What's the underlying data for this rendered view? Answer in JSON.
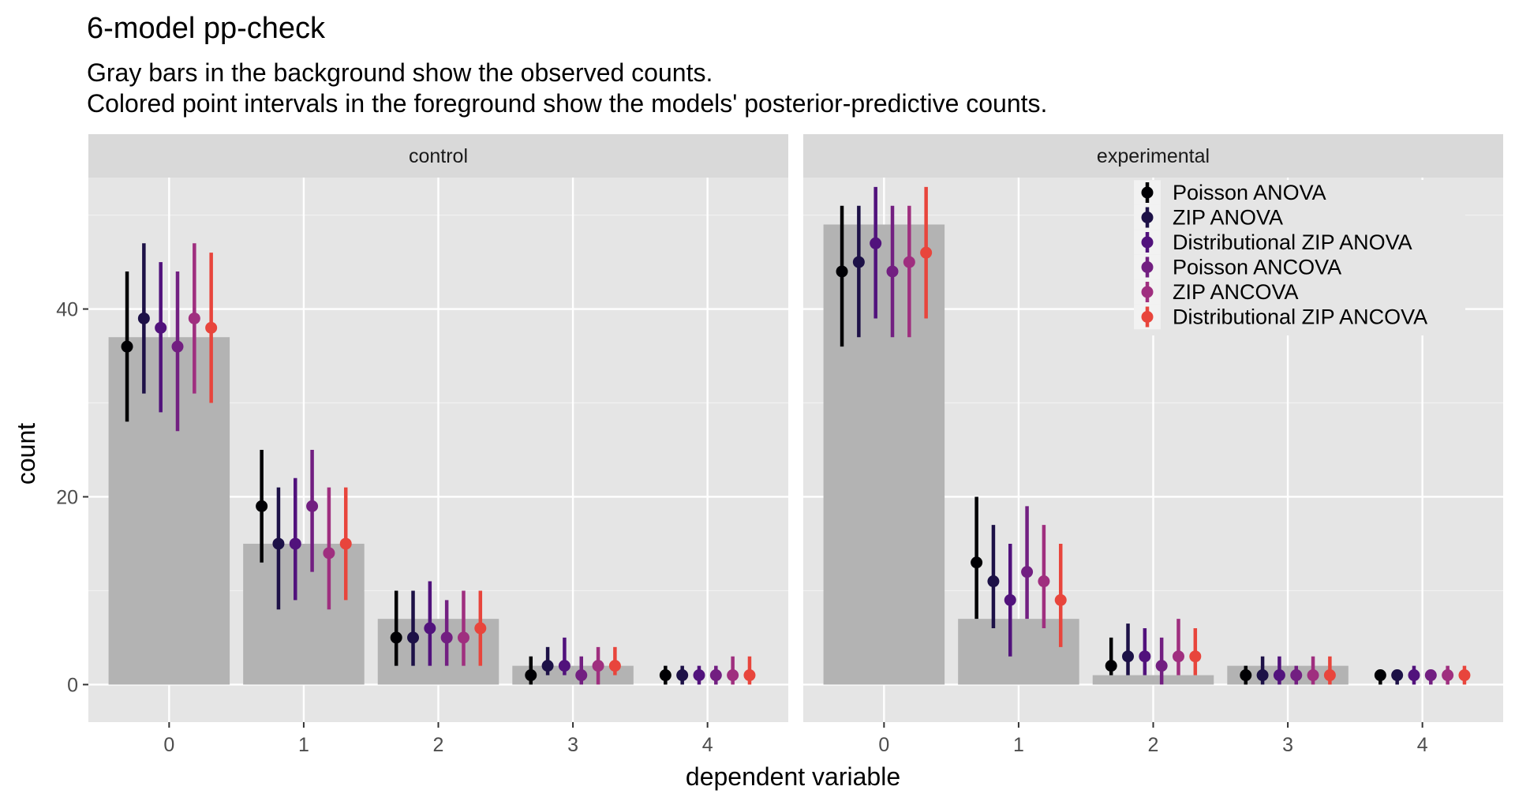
{
  "chart_data": {
    "type": "bar",
    "title": "6-model pp-check",
    "subtitle_lines": [
      "Gray bars in the background show the observed counts.",
      "Colored point intervals in the foreground show the models' posterior-predictive counts."
    ],
    "xlabel": "dependent variable",
    "ylabel": "count",
    "categories": [
      "0",
      "1",
      "2",
      "3",
      "4"
    ],
    "ylim": [
      -4,
      54
    ],
    "yticks": [
      0,
      20,
      40
    ],
    "grid": true,
    "legend_position": "top-right",
    "colors": {
      "panel_background": "#e5e5e5",
      "strip_background": "#d9d9d9",
      "observed_bar": "#b3b3b3"
    },
    "models": [
      {
        "name": "Poisson ANOVA",
        "color": "#000004"
      },
      {
        "name": "ZIP ANOVA",
        "color": "#1d1147"
      },
      {
        "name": "Distributional ZIP ANOVA",
        "color": "#51127c"
      },
      {
        "name": "Poisson ANCOVA",
        "color": "#721f81"
      },
      {
        "name": "ZIP ANCOVA",
        "color": "#9f2f7f"
      },
      {
        "name": "Distributional ZIP ANCOVA",
        "color": "#e8453c"
      }
    ],
    "panels": [
      {
        "label": "control",
        "observed": [
          37,
          15,
          7,
          2,
          0
        ],
        "predicted": [
          [
            {
              "est": 36,
              "lo": 28,
              "hi": 44
            },
            {
              "est": 19,
              "lo": 13,
              "hi": 25
            },
            {
              "est": 5,
              "lo": 2,
              "hi": 10
            },
            {
              "est": 1,
              "lo": 0,
              "hi": 3
            },
            {
              "est": 1,
              "lo": 0,
              "hi": 2
            }
          ],
          [
            {
              "est": 39,
              "lo": 31,
              "hi": 47
            },
            {
              "est": 15,
              "lo": 8,
              "hi": 21
            },
            {
              "est": 5,
              "lo": 2,
              "hi": 10
            },
            {
              "est": 2,
              "lo": 1,
              "hi": 4
            },
            {
              "est": 1,
              "lo": 0,
              "hi": 2
            }
          ],
          [
            {
              "est": 38,
              "lo": 29,
              "hi": 45
            },
            {
              "est": 15,
              "lo": 9,
              "hi": 22
            },
            {
              "est": 6,
              "lo": 2,
              "hi": 11
            },
            {
              "est": 2,
              "lo": 1,
              "hi": 5
            },
            {
              "est": 1,
              "lo": 0,
              "hi": 2
            }
          ],
          [
            {
              "est": 36,
              "lo": 27,
              "hi": 44
            },
            {
              "est": 19,
              "lo": 12,
              "hi": 25
            },
            {
              "est": 5,
              "lo": 2,
              "hi": 9
            },
            {
              "est": 1,
              "lo": 0,
              "hi": 3
            },
            {
              "est": 1,
              "lo": 0,
              "hi": 2
            }
          ],
          [
            {
              "est": 39,
              "lo": 31,
              "hi": 47
            },
            {
              "est": 14,
              "lo": 8,
              "hi": 21
            },
            {
              "est": 5,
              "lo": 2,
              "hi": 10
            },
            {
              "est": 2,
              "lo": 0,
              "hi": 4
            },
            {
              "est": 1,
              "lo": 0,
              "hi": 3
            }
          ],
          [
            {
              "est": 38,
              "lo": 30,
              "hi": 46
            },
            {
              "est": 15,
              "lo": 9,
              "hi": 21
            },
            {
              "est": 6,
              "lo": 2,
              "hi": 10
            },
            {
              "est": 2,
              "lo": 1,
              "hi": 4
            },
            {
              "est": 1,
              "lo": 0,
              "hi": 3
            }
          ]
        ]
      },
      {
        "label": "experimental",
        "observed": [
          49,
          7,
          1,
          2,
          0
        ],
        "predicted": [
          [
            {
              "est": 44,
              "lo": 36,
              "hi": 51
            },
            {
              "est": 13,
              "lo": 7,
              "hi": 20
            },
            {
              "est": 2,
              "lo": 1,
              "hi": 5
            },
            {
              "est": 1,
              "lo": 0,
              "hi": 2
            },
            {
              "est": 1,
              "lo": 0,
              "hi": 1
            }
          ],
          [
            {
              "est": 45,
              "lo": 37,
              "hi": 51
            },
            {
              "est": 11,
              "lo": 6,
              "hi": 17
            },
            {
              "est": 3,
              "lo": 1,
              "hi": 6.5
            },
            {
              "est": 1,
              "lo": 0,
              "hi": 3
            },
            {
              "est": 1,
              "lo": 0,
              "hi": 1
            }
          ],
          [
            {
              "est": 47,
              "lo": 39,
              "hi": 53
            },
            {
              "est": 9,
              "lo": 3,
              "hi": 15
            },
            {
              "est": 3,
              "lo": 1,
              "hi": 6
            },
            {
              "est": 1,
              "lo": 0,
              "hi": 3
            },
            {
              "est": 1,
              "lo": 0,
              "hi": 2
            }
          ],
          [
            {
              "est": 44,
              "lo": 37,
              "hi": 51
            },
            {
              "est": 12,
              "lo": 7,
              "hi": 19
            },
            {
              "est": 2,
              "lo": 0,
              "hi": 5
            },
            {
              "est": 1,
              "lo": 0,
              "hi": 2
            },
            {
              "est": 1,
              "lo": 0,
              "hi": 1
            }
          ],
          [
            {
              "est": 45,
              "lo": 37,
              "hi": 51
            },
            {
              "est": 11,
              "lo": 6,
              "hi": 17
            },
            {
              "est": 3,
              "lo": 1,
              "hi": 7
            },
            {
              "est": 1,
              "lo": 0,
              "hi": 3
            },
            {
              "est": 1,
              "lo": 0,
              "hi": 2
            }
          ],
          [
            {
              "est": 46,
              "lo": 39,
              "hi": 53
            },
            {
              "est": 9,
              "lo": 4,
              "hi": 15
            },
            {
              "est": 3,
              "lo": 1,
              "hi": 6
            },
            {
              "est": 1,
              "lo": 0,
              "hi": 3
            },
            {
              "est": 1,
              "lo": 0,
              "hi": 2
            }
          ]
        ]
      }
    ]
  }
}
